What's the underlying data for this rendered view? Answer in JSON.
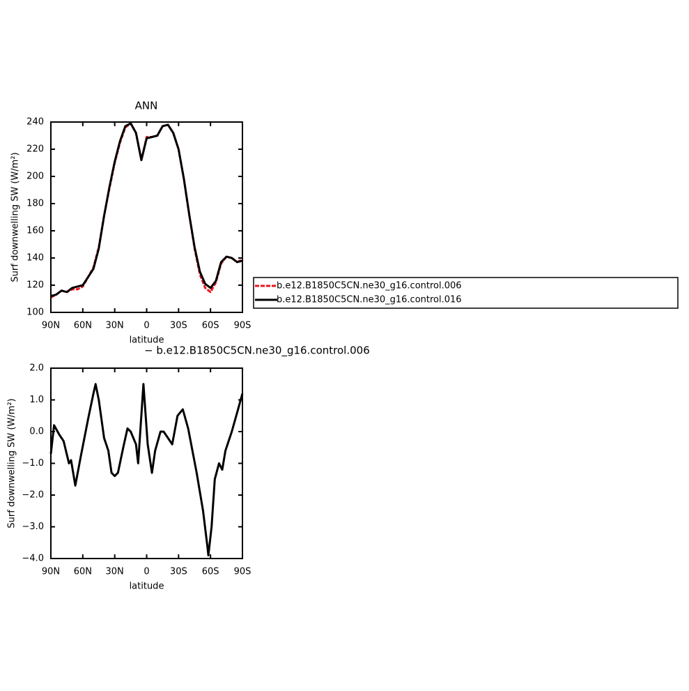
{
  "chart_data": [
    {
      "type": "line",
      "title": "ANN",
      "xlabel": "latitude",
      "ylabel": "Surf downwelling SW (W/m²)",
      "x": [
        90,
        85,
        80,
        75,
        70,
        65,
        60,
        55,
        50,
        45,
        40,
        35,
        30,
        25,
        20,
        15,
        10,
        5,
        0,
        -5,
        -10,
        -15,
        -20,
        -25,
        -30,
        -35,
        -40,
        -45,
        -50,
        -55,
        -60,
        -65,
        -70,
        -75,
        -80,
        -85,
        -90
      ],
      "series": [
        {
          "name": "b.e12.B1850C5CN.ne30_g16.control.006",
          "color": "#e8141c",
          "linestyle": "dashed",
          "values": [
            111,
            113,
            116,
            115,
            117,
            117,
            119,
            126,
            133,
            148,
            171,
            191,
            210,
            225,
            236,
            239,
            232,
            212,
            229,
            229,
            230,
            237,
            238,
            232,
            220,
            198,
            172,
            147,
            128,
            118,
            115,
            122,
            136,
            141,
            140,
            137,
            139
          ]
        },
        {
          "name": "b.e12.B1850C5CN.ne30_g16.control.016",
          "color": "#000000",
          "linestyle": "solid",
          "values": [
            112,
            113,
            116,
            115,
            118,
            119,
            120,
            126,
            132,
            147,
            171,
            192,
            211,
            226,
            237,
            239,
            232,
            212,
            228,
            229,
            230,
            237,
            238,
            232,
            220,
            198,
            172,
            148,
            130,
            121,
            118,
            123,
            137,
            141,
            140,
            137,
            138
          ]
        }
      ],
      "xlim": [
        90,
        -90
      ],
      "ylim": [
        100,
        240
      ],
      "xticks": [
        {
          "value": 90,
          "label": "90N"
        },
        {
          "value": 60,
          "label": "60N"
        },
        {
          "value": 30,
          "label": "30N"
        },
        0,
        {
          "value": -30,
          "label": "30S"
        },
        {
          "value": -60,
          "label": "60S"
        },
        {
          "value": -90,
          "label": "90S"
        }
      ],
      "yticks": [
        100,
        120,
        140,
        160,
        180,
        200,
        220,
        240
      ],
      "legend": "right"
    },
    {
      "type": "line",
      "title": "− b.e12.B1850C5CN.ne30_g16.control.006",
      "xlabel": "latitude",
      "ylabel": "Surf downwelling SW (W/m²)",
      "x": [
        90,
        87,
        82,
        78,
        73,
        71,
        67,
        62,
        55,
        50,
        48,
        45,
        40,
        36,
        33,
        30,
        27,
        22,
        18,
        15,
        10,
        8,
        3,
        -1,
        -5,
        -8,
        -13,
        -16,
        -20,
        -24,
        -29,
        -34,
        -39,
        -47,
        -53,
        -57,
        -58,
        -61,
        -64,
        -68,
        -71,
        -74,
        -80,
        -85,
        -90
      ],
      "values": [
        -0.7,
        0.2,
        -0.1,
        -0.3,
        -1.0,
        -0.9,
        -1.7,
        -0.8,
        0.4,
        1.2,
        1.5,
        1.0,
        -0.2,
        -0.6,
        -1.3,
        -1.4,
        -1.3,
        -0.5,
        0.1,
        0.0,
        -0.4,
        -1.0,
        1.5,
        -0.4,
        -1.3,
        -0.6,
        0.0,
        0.0,
        -0.2,
        -0.4,
        0.5,
        0.7,
        0.1,
        -1.3,
        -2.5,
        -3.6,
        -3.9,
        -3.0,
        -1.5,
        -1.0,
        -1.2,
        -0.6,
        0.0,
        0.6,
        1.2
      ],
      "color": "#000000",
      "xlim": [
        90,
        -90
      ],
      "ylim": [
        -4.0,
        2.0
      ],
      "xticks": [
        {
          "value": 90,
          "label": "90N"
        },
        {
          "value": 60,
          "label": "60N"
        },
        {
          "value": 30,
          "label": "30N"
        },
        0,
        {
          "value": -30,
          "label": "30S"
        },
        {
          "value": -60,
          "label": "60S"
        },
        {
          "value": -90,
          "label": "90S"
        }
      ],
      "yticks": [
        {
          "value": -4.0,
          "label": "−4.0"
        },
        {
          "value": -3.0,
          "label": "−3.0"
        },
        {
          "value": -2.0,
          "label": "−2.0"
        },
        {
          "value": -1.0,
          "label": "−1.0"
        },
        {
          "value": 0.0,
          "label": "0.0"
        },
        {
          "value": 1.0,
          "label": "1.0"
        },
        {
          "value": 2.0,
          "label": "2.0"
        }
      ]
    }
  ]
}
